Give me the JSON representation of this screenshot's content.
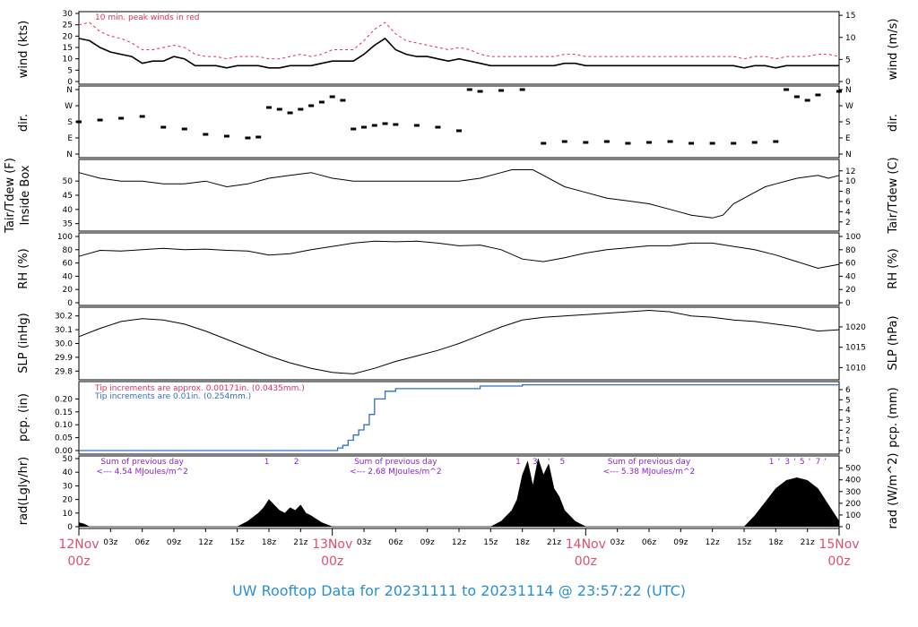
{
  "title": "UW Rooftop Data for 20231111  to  20231114 @ 23:57:22  (UTC)",
  "colors": {
    "day": "#e05070",
    "title": "#2a8fd0",
    "peak": "#e03050",
    "pcp_approx": "#e03060",
    "pcp_tip": "#3070c0",
    "rad_note": "#9020d0"
  },
  "x_axis": {
    "day_labels": [
      {
        "h": 0,
        "top": "12Nov",
        "bot": "00z"
      },
      {
        "h": 24,
        "top": "13Nov",
        "bot": "00z"
      },
      {
        "h": 48,
        "top": "14Nov",
        "bot": "00z"
      },
      {
        "h": 72,
        "top": "15Nov",
        "bot": "00z"
      }
    ],
    "hour_ticks": [
      "03z",
      "06z",
      "09z",
      "12z",
      "15z",
      "18z",
      "21z"
    ]
  },
  "panels": {
    "wind": {
      "left_label": "wind (kts)",
      "right_label": "wind (m/s)",
      "note": "10 min. peak winds in red",
      "left_ticks": [
        "0",
        "5",
        "10",
        "15",
        "20",
        "25",
        "30"
      ],
      "right_ticks": [
        "0",
        "5",
        "10",
        "15"
      ]
    },
    "dir": {
      "left_label": "dir.",
      "right_label": "dir.",
      "ticks": [
        "N",
        "E",
        "S",
        "W",
        "N"
      ]
    },
    "temp": {
      "left_label_1": "Tair/Tdew (F)",
      "left_label_2": "Inside Box",
      "right_label": "Tair/Tdew (C)",
      "left_ticks": [
        "35",
        "40",
        "45",
        "50"
      ],
      "right_ticks": [
        "2",
        "4",
        "6",
        "8",
        "10",
        "12"
      ]
    },
    "rh": {
      "left_label": "RH (%)",
      "right_label": "RH (%)",
      "ticks": [
        "0",
        "20",
        "40",
        "60",
        "80",
        "100"
      ]
    },
    "slp": {
      "left_label": "SLP (inHg)",
      "right_label": "SLP (hPa)",
      "left_ticks": [
        "29.8",
        "29.9",
        "30.0",
        "30.1",
        "30.2"
      ],
      "right_ticks": [
        "1010",
        "1015",
        "1020"
      ]
    },
    "pcp": {
      "left_label": "pcp. (in)",
      "right_label": "pcp. (mm)",
      "note1": "Tip increments are approx. 0.00171in. (0.0435mm.)",
      "note2": "Tip increments are 0.01in. (0.254mm.)",
      "left_ticks": [
        "0.00",
        "0.05",
        "0.10",
        "0.15",
        "0.20"
      ],
      "right_ticks": [
        "0",
        "1",
        "2",
        "3",
        "4",
        "5",
        "6"
      ]
    },
    "rad": {
      "left_label": "rad(Lgly/hr)",
      "right_label": "rad (W/m^2)",
      "left_ticks": [
        "0",
        "10",
        "20",
        "30",
        "40",
        "50"
      ],
      "right_ticks": [
        "0",
        "100",
        "200",
        "300",
        "400",
        "500"
      ],
      "sum_notes": [
        {
          "h": 6,
          "line1": "Sum of previous day",
          "line2": "<--- 4.54 MJoules/m^2"
        },
        {
          "h": 30,
          "line1": "Sum of previous day",
          "line2": "<--- 2.68 MJoules/m^2"
        },
        {
          "h": 54,
          "line1": "Sum of previous day",
          "line2": "<--- 5.38 MJoules/m^2"
        }
      ],
      "hour_marks": [
        {
          "h": 17.8,
          "t": "1"
        },
        {
          "h": 20.6,
          "t": "2"
        },
        {
          "h": 41.6,
          "t": "1"
        },
        {
          "h": 43.2,
          "t": "3"
        },
        {
          "h": 44.5,
          "t": "'"
        },
        {
          "h": 45.8,
          "t": "5"
        },
        {
          "h": 65.6,
          "t": "1"
        },
        {
          "h": 66.3,
          "t": "'"
        },
        {
          "h": 67.1,
          "t": "3"
        },
        {
          "h": 67.8,
          "t": "'"
        },
        {
          "h": 68.5,
          "t": "5"
        },
        {
          "h": 69.2,
          "t": "'"
        },
        {
          "h": 70.0,
          "t": "7"
        },
        {
          "h": 70.7,
          "t": "'"
        }
      ]
    }
  },
  "chart_data": {
    "type": "line",
    "x_unit": "hours since 12Nov 00z",
    "x_range": [
      0,
      72
    ],
    "wind_kts": {
      "ylim": [
        0,
        30
      ],
      "x": [
        0,
        1,
        2,
        3,
        4,
        5,
        6,
        7,
        8,
        9,
        10,
        11,
        12,
        13,
        14,
        15,
        16,
        17,
        18,
        19,
        20,
        21,
        22,
        23,
        24,
        25,
        26,
        27,
        28,
        29,
        30,
        31,
        32,
        33,
        34,
        35,
        36,
        37,
        38,
        39,
        40,
        41,
        42,
        43,
        44,
        45,
        46,
        47,
        48,
        49,
        50,
        51,
        52,
        53,
        54,
        55,
        56,
        57,
        58,
        59,
        60,
        61,
        62,
        63,
        64,
        65,
        66,
        67,
        68,
        69,
        70,
        71,
        72
      ],
      "y": [
        19,
        18,
        15,
        13,
        12,
        11,
        8,
        9,
        9,
        11,
        10,
        7,
        7,
        7,
        6,
        7,
        7,
        7,
        6,
        6,
        7,
        7,
        7,
        8,
        9,
        9,
        9,
        12,
        16,
        19,
        14,
        12,
        11,
        11,
        10,
        9,
        10,
        9,
        8,
        7,
        7,
        7,
        7,
        7,
        7,
        7,
        8,
        8,
        7,
        7,
        7,
        7,
        7,
        7,
        7,
        7,
        7,
        7,
        7,
        7,
        7,
        7,
        7,
        6,
        7,
        7,
        6,
        7,
        7,
        7,
        7,
        7,
        7
      ],
      "peak": [
        25,
        26,
        22,
        20,
        19,
        17,
        14,
        14,
        15,
        16,
        15,
        12,
        11,
        11,
        10,
        11,
        11,
        11,
        10,
        10,
        11,
        12,
        11,
        12,
        14,
        14,
        14,
        18,
        23,
        26,
        21,
        18,
        17,
        16,
        15,
        14,
        15,
        14,
        12,
        11,
        11,
        11,
        11,
        11,
        11,
        11,
        12,
        12,
        11,
        11,
        11,
        11,
        11,
        11,
        11,
        11,
        11,
        11,
        11,
        11,
        11,
        11,
        11,
        10,
        11,
        11,
        10,
        11,
        11,
        11,
        12,
        12,
        11
      ]
    },
    "wind_dir": {
      "ticks": [
        "N",
        "E",
        "S",
        "W",
        "N"
      ],
      "x": [
        0,
        2,
        4,
        6,
        8,
        10,
        12,
        14,
        16,
        17,
        18,
        19,
        20,
        21,
        22,
        23,
        24,
        25,
        26,
        27,
        28,
        29,
        30,
        32,
        34,
        36,
        37,
        38,
        40,
        42,
        44,
        46,
        48,
        50,
        52,
        54,
        56,
        58,
        60,
        62,
        64,
        66,
        67,
        68,
        69,
        70,
        72
      ],
      "y": [
        180,
        190,
        200,
        210,
        150,
        140,
        110,
        100,
        90,
        95,
        260,
        250,
        230,
        250,
        270,
        290,
        320,
        300,
        140,
        150,
        160,
        170,
        165,
        160,
        150,
        130,
        360,
        350,
        355,
        360,
        60,
        70,
        65,
        70,
        60,
        65,
        70,
        60,
        60,
        60,
        65,
        70,
        360,
        320,
        300,
        330,
        350
      ]
    },
    "temp_F": {
      "ylim": [
        33,
        57
      ],
      "x": [
        0,
        2,
        4,
        6,
        8,
        10,
        12,
        14,
        16,
        18,
        20,
        22,
        24,
        26,
        28,
        30,
        32,
        34,
        36,
        38,
        40,
        41,
        42,
        43,
        44,
        46,
        48,
        50,
        52,
        54,
        56,
        58,
        60,
        61,
        62,
        63,
        64,
        65,
        66,
        68,
        70,
        71,
        72
      ],
      "y": [
        53,
        51,
        50,
        50,
        49,
        49,
        50,
        48,
        49,
        51,
        52,
        53,
        51,
        50,
        50,
        50,
        50,
        50,
        50,
        51,
        53,
        54,
        54,
        54,
        52,
        48,
        46,
        44,
        43,
        42,
        40,
        38,
        37,
        38,
        42,
        44,
        46,
        48,
        49,
        51,
        52,
        51,
        52
      ]
    },
    "rh_pct": {
      "ylim": [
        0,
        100
      ],
      "x": [
        0,
        2,
        4,
        6,
        8,
        10,
        12,
        14,
        16,
        18,
        20,
        22,
        24,
        26,
        28,
        30,
        32,
        34,
        36,
        38,
        40,
        42,
        44,
        46,
        48,
        50,
        52,
        54,
        56,
        58,
        60,
        62,
        64,
        66,
        68,
        70,
        72
      ],
      "y": [
        70,
        79,
        78,
        80,
        82,
        80,
        81,
        79,
        78,
        72,
        74,
        80,
        85,
        90,
        93,
        92,
        93,
        90,
        86,
        87,
        80,
        66,
        62,
        68,
        75,
        80,
        83,
        86,
        86,
        90,
        90,
        85,
        80,
        72,
        62,
        52,
        58
      ]
    },
    "slp_inHg": {
      "ylim": [
        29.75,
        30.25
      ],
      "x": [
        0,
        2,
        4,
        6,
        8,
        10,
        12,
        14,
        16,
        18,
        20,
        22,
        24,
        26,
        28,
        30,
        32,
        34,
        36,
        38,
        40,
        42,
        44,
        46,
        48,
        50,
        52,
        54,
        56,
        58,
        60,
        62,
        64,
        66,
        68,
        70,
        72
      ],
      "y": [
        30.05,
        30.11,
        30.16,
        30.18,
        30.17,
        30.14,
        30.09,
        30.03,
        29.97,
        29.91,
        29.86,
        29.82,
        29.79,
        29.78,
        29.82,
        29.87,
        29.91,
        29.95,
        30.0,
        30.06,
        30.12,
        30.17,
        30.19,
        30.2,
        30.21,
        30.22,
        30.23,
        30.24,
        30.23,
        30.2,
        30.19,
        30.17,
        30.16,
        30.14,
        30.12,
        30.09,
        30.1
      ]
    },
    "pcp_in": {
      "ylim": [
        0,
        0.25
      ],
      "x": [
        0,
        24,
        24.5,
        25,
        25.5,
        26,
        26.5,
        27,
        27.5,
        28,
        29,
        30,
        32,
        34,
        36,
        38,
        40,
        42,
        44,
        48,
        52,
        56,
        60,
        64,
        68,
        72
      ],
      "y": [
        0,
        0,
        0.01,
        0.02,
        0.04,
        0.06,
        0.08,
        0.1,
        0.14,
        0.2,
        0.23,
        0.24,
        0.24,
        0.24,
        0.24,
        0.25,
        0.25,
        0.255,
        0.255,
        0.255,
        0.255,
        0.255,
        0.255,
        0.255,
        0.255,
        0.255
      ]
    },
    "rad_lgly": {
      "ylim": [
        0,
        50
      ],
      "x": [
        0,
        0.5,
        1,
        15,
        16,
        17,
        17.5,
        18,
        18.5,
        19,
        19.5,
        20,
        20.5,
        21,
        21.5,
        22,
        23,
        24,
        39,
        40,
        41,
        41.5,
        42,
        42.5,
        43,
        43.5,
        44,
        44.5,
        45,
        45.5,
        46,
        47,
        48,
        63,
        64,
        65,
        66,
        67,
        68,
        69,
        70,
        71,
        72
      ],
      "y": [
        3,
        2,
        0,
        0,
        4,
        10,
        14,
        20,
        16,
        12,
        10,
        14,
        12,
        16,
        10,
        8,
        3,
        0,
        0,
        4,
        12,
        20,
        38,
        48,
        30,
        50,
        38,
        46,
        28,
        22,
        12,
        4,
        0,
        0,
        8,
        18,
        28,
        34,
        36,
        34,
        28,
        16,
        4
      ]
    }
  }
}
